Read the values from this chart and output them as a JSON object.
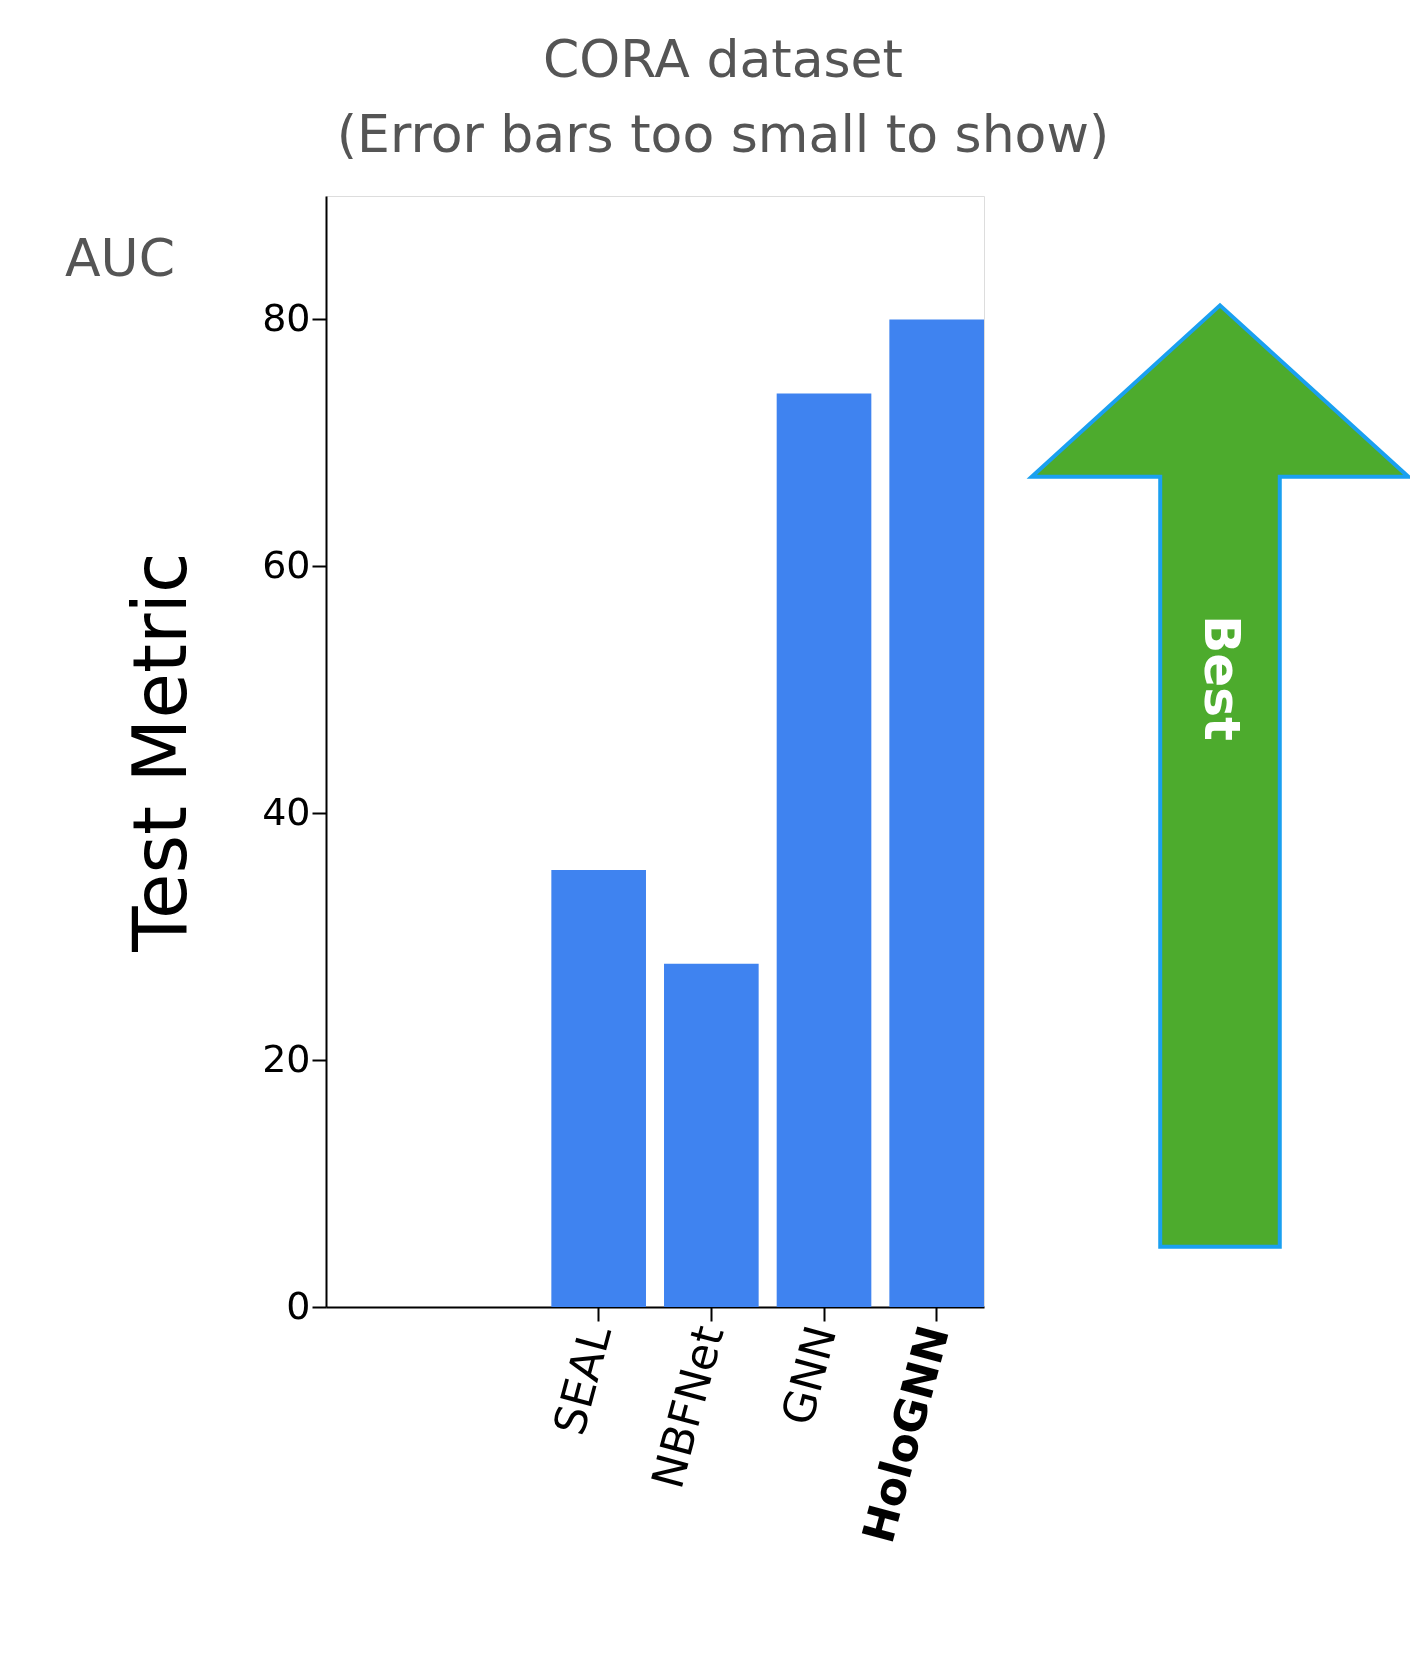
{
  "chart_data": {
    "type": "bar",
    "title": "CORA dataset",
    "subtitle": "(Error bars too small to show)",
    "ylabel": "Test Metric",
    "categories": [
      "SEAL",
      "NBFNet",
      "GNN",
      "HoloGNN"
    ],
    "values": [
      35.4,
      27.8,
      74.0,
      80.0
    ],
    "color": "#3f83f0",
    "ylim": [
      0,
      90
    ],
    "yticks": [
      0,
      20,
      40,
      60,
      80
    ],
    "grid": false,
    "annotations": [
      "AUC",
      "Best"
    ]
  }
}
